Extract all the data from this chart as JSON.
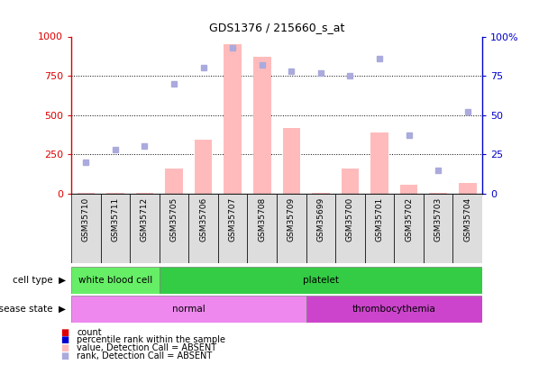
{
  "title": "GDS1376 / 215660_s_at",
  "samples": [
    "GSM35710",
    "GSM35711",
    "GSM35712",
    "GSM35705",
    "GSM35706",
    "GSM35707",
    "GSM35708",
    "GSM35709",
    "GSM35699",
    "GSM35700",
    "GSM35701",
    "GSM35702",
    "GSM35703",
    "GSM35704"
  ],
  "bar_values": [
    5,
    5,
    5,
    160,
    340,
    950,
    870,
    415,
    5,
    160,
    390,
    55,
    5,
    65
  ],
  "rank_values": [
    20,
    28,
    30,
    70,
    80,
    93,
    82,
    78,
    77,
    75,
    86,
    37,
    15,
    52
  ],
  "cell_type_groups": [
    {
      "label": "white blood cell",
      "start": 0,
      "end": 3,
      "color": "#66ee66"
    },
    {
      "label": "platelet",
      "start": 3,
      "end": 14,
      "color": "#33cc44"
    }
  ],
  "disease_state_groups": [
    {
      "label": "normal",
      "start": 0,
      "end": 8,
      "color": "#ee88ee"
    },
    {
      "label": "thrombocythemia",
      "start": 8,
      "end": 14,
      "color": "#cc44cc"
    }
  ],
  "bar_color": "#ffbbbb",
  "rank_dot_color": "#aaaadd",
  "count_color": "#dd0000",
  "rank_color": "#0000cc",
  "ylim_left": [
    0,
    1000
  ],
  "ylim_right": [
    0,
    100
  ],
  "yticks_left": [
    0,
    250,
    500,
    750,
    1000
  ],
  "yticks_right": [
    0,
    25,
    50,
    75,
    100
  ],
  "ytick_right_labels": [
    "0",
    "25",
    "50",
    "75",
    "100%"
  ],
  "legend_items": [
    {
      "label": "count",
      "color": "#dd0000"
    },
    {
      "label": "percentile rank within the sample",
      "color": "#0000cc"
    },
    {
      "label": "value, Detection Call = ABSENT",
      "color": "#ffbbbb"
    },
    {
      "label": "rank, Detection Call = ABSENT",
      "color": "#aaaadd"
    }
  ],
  "background_color": "#ffffff"
}
